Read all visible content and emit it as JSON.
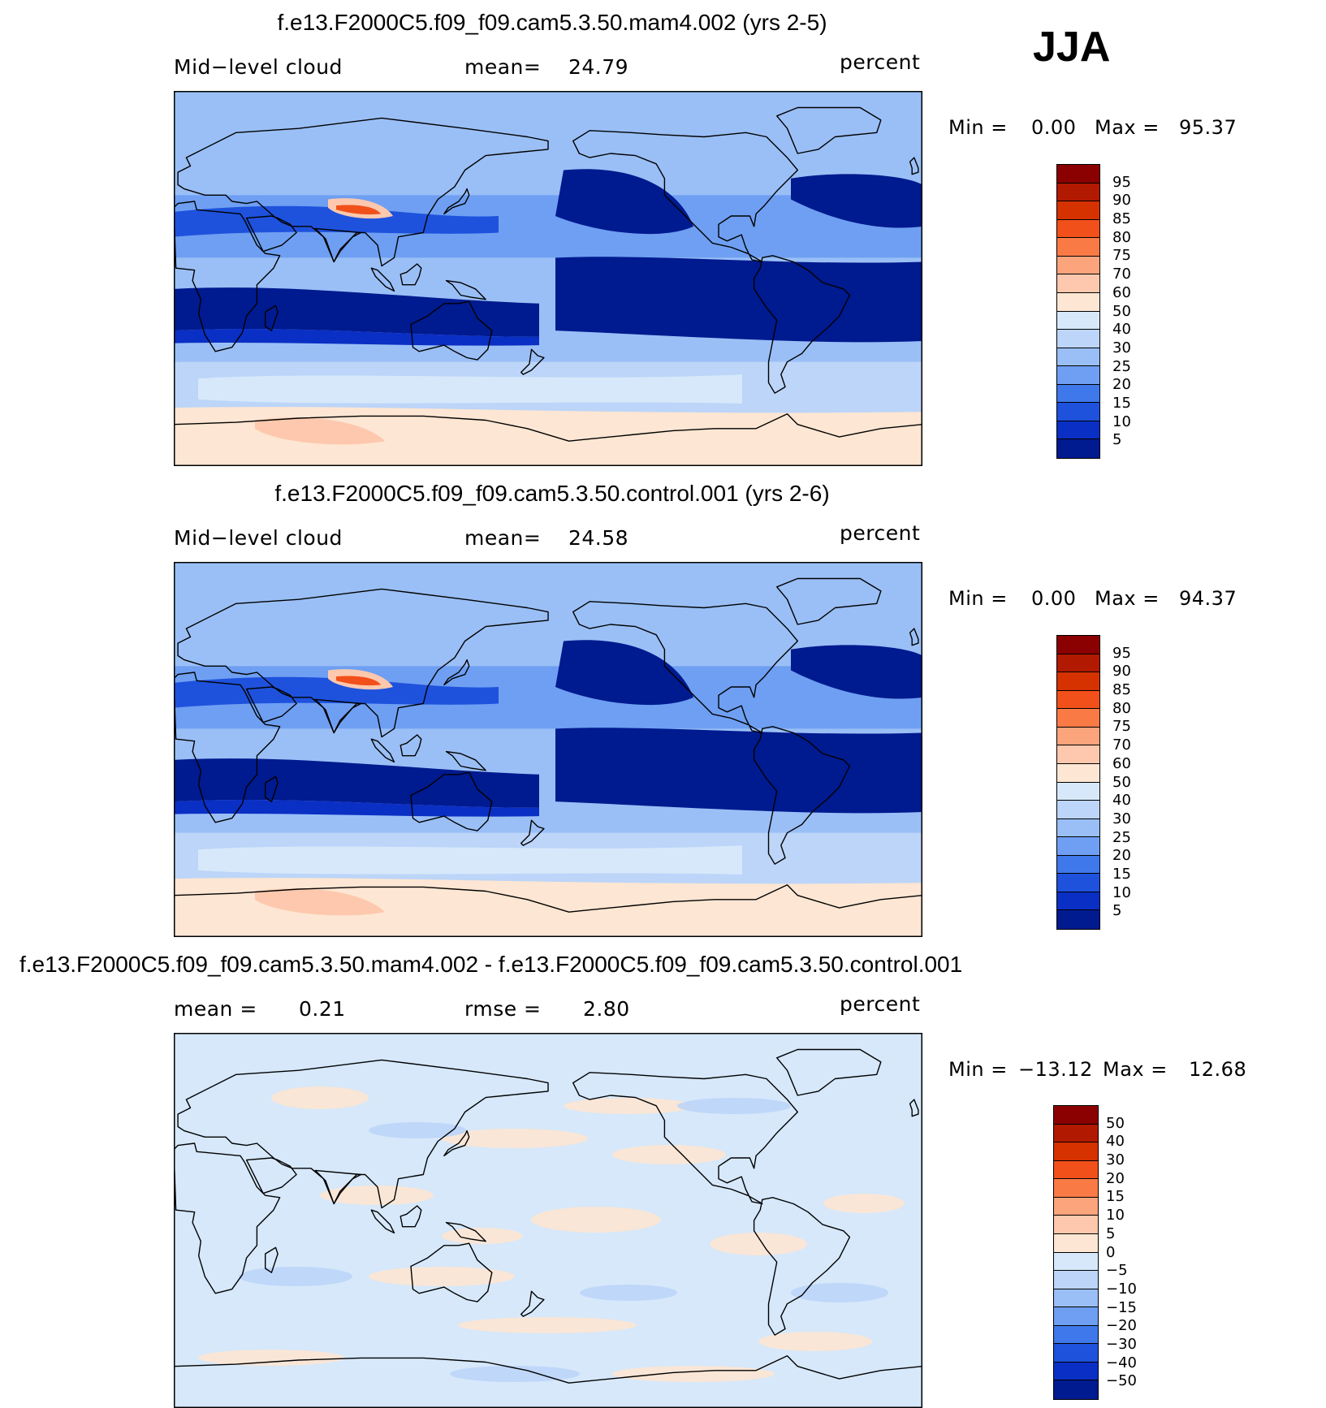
{
  "season": "JJA",
  "panels": [
    {
      "title": "f.e13.F2000C5.f09_f09.cam5.3.50.mam4.002 (yrs 2-5)",
      "left_label": "Mid−level cloud",
      "center_label": "mean=",
      "center_value": "24.79",
      "units": "percent",
      "min_label": "Min =",
      "min_value": "0.00",
      "max_label": "Max =",
      "max_value": "95.37",
      "colorbar": {
        "levels": [
          "95",
          "90",
          "85",
          "80",
          "75",
          "70",
          "60",
          "50",
          "40",
          "30",
          "25",
          "20",
          "15",
          "10",
          "5"
        ],
        "colors": [
          "#8b0000",
          "#b11a00",
          "#d53200",
          "#f2501a",
          "#fa7a46",
          "#fca47c",
          "#fdc8ad",
          "#fde6d3",
          "#d6e8fa",
          "#bcd5f8",
          "#9abff6",
          "#6e9ff2",
          "#3f78ea",
          "#1e52dd",
          "#0a2fc4",
          "#001a8f"
        ]
      },
      "chart_data": {
        "type": "heatmap",
        "title": "f.e13.F2000C5.f09_f09.cam5.3.50.mam4.002 (yrs 2-5)",
        "variable": "Mid-level cloud",
        "units": "percent",
        "mean": 24.79,
        "min": 0.0,
        "max": 95.37,
        "contour_levels": [
          5,
          10,
          15,
          20,
          25,
          30,
          40,
          50,
          60,
          70,
          75,
          80,
          85,
          90,
          95
        ],
        "projection": "cylindrical equidistant, centered 180"
      }
    },
    {
      "title": "f.e13.F2000C5.f09_f09.cam5.3.50.control.001 (yrs 2-6)",
      "left_label": "Mid−level cloud",
      "center_label": "mean=",
      "center_value": "24.58",
      "units": "percent",
      "min_label": "Min =",
      "min_value": "0.00",
      "max_label": "Max =",
      "max_value": "94.37",
      "colorbar": {
        "levels": [
          "95",
          "90",
          "85",
          "80",
          "75",
          "70",
          "60",
          "50",
          "40",
          "30",
          "25",
          "20",
          "15",
          "10",
          "5"
        ],
        "colors": [
          "#8b0000",
          "#b11a00",
          "#d53200",
          "#f2501a",
          "#fa7a46",
          "#fca47c",
          "#fdc8ad",
          "#fde6d3",
          "#d6e8fa",
          "#bcd5f8",
          "#9abff6",
          "#6e9ff2",
          "#3f78ea",
          "#1e52dd",
          "#0a2fc4",
          "#001a8f"
        ]
      },
      "chart_data": {
        "type": "heatmap",
        "title": "f.e13.F2000C5.f09_f09.cam5.3.50.control.001 (yrs 2-6)",
        "variable": "Mid-level cloud",
        "units": "percent",
        "mean": 24.58,
        "min": 0.0,
        "max": 94.37,
        "contour_levels": [
          5,
          10,
          15,
          20,
          25,
          30,
          40,
          50,
          60,
          70,
          75,
          80,
          85,
          90,
          95
        ],
        "projection": "cylindrical equidistant, centered 180"
      }
    },
    {
      "title": "f.e13.F2000C5.f09_f09.cam5.3.50.mam4.002 - f.e13.F2000C5.f09_f09.cam5.3.50.control.001",
      "left_label": "mean =",
      "left_value": "0.21",
      "center_label": "rmse =",
      "center_value": "2.80",
      "units": "percent",
      "min_label": "Min =",
      "min_value": "−13.12",
      "max_label": "Max =",
      "max_value": "12.68",
      "colorbar": {
        "levels": [
          "50",
          "40",
          "30",
          "20",
          "15",
          "10",
          "5",
          "0",
          "−5",
          "−10",
          "−15",
          "−20",
          "−30",
          "−40",
          "−50"
        ],
        "colors": [
          "#8b0000",
          "#b11a00",
          "#d53200",
          "#f2501a",
          "#fa7a46",
          "#fca47c",
          "#fdc8ad",
          "#fde6d3",
          "#d6e8fa",
          "#bcd5f8",
          "#9abff6",
          "#6e9ff2",
          "#3f78ea",
          "#1e52dd",
          "#0a2fc4",
          "#001a8f"
        ]
      },
      "chart_data": {
        "type": "heatmap",
        "title": "f.e13.F2000C5.f09_f09.cam5.3.50.mam4.002 - f.e13.F2000C5.f09_f09.cam5.3.50.control.001",
        "variable": "Mid-level cloud difference",
        "units": "percent",
        "mean": 0.21,
        "rmse": 2.8,
        "min": -13.12,
        "max": 12.68,
        "contour_levels": [
          -50,
          -40,
          -30,
          -20,
          -15,
          -10,
          -5,
          0,
          5,
          10,
          15,
          20,
          30,
          40,
          50
        ],
        "projection": "cylindrical equidistant, centered 180"
      }
    }
  ]
}
